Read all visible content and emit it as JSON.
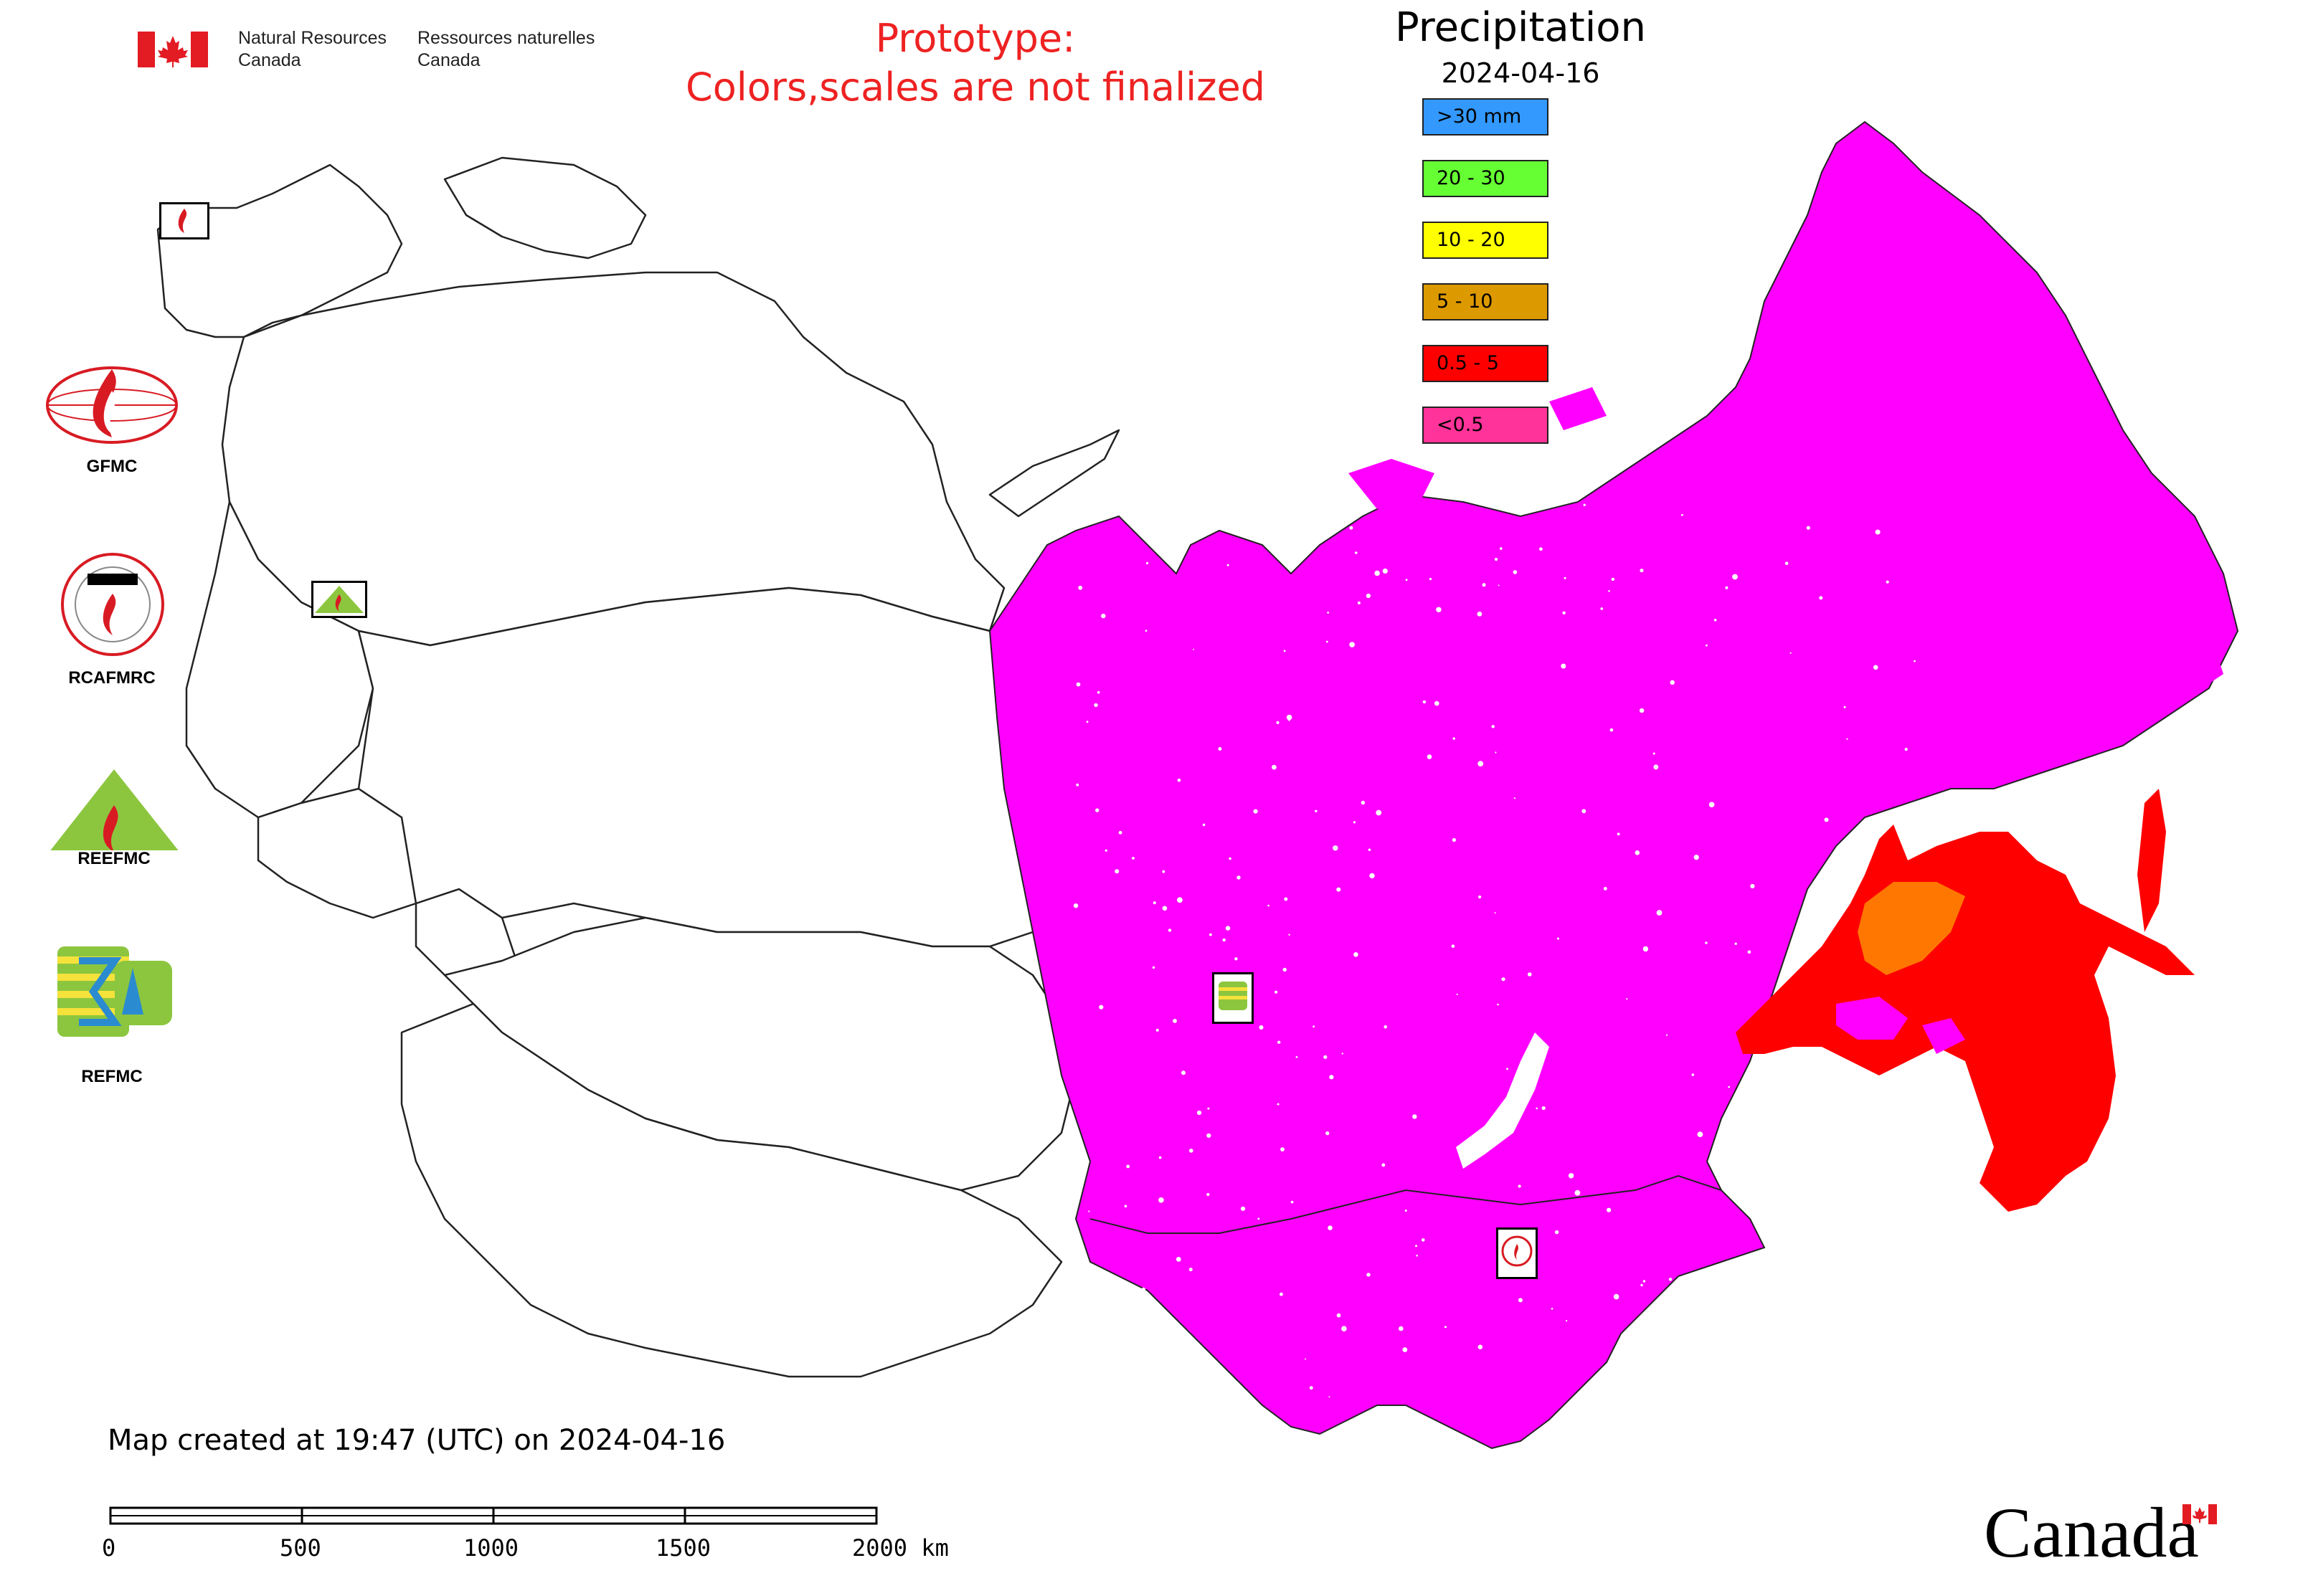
{
  "header": {
    "gov_en_line1": "Natural Resources",
    "gov_en_line2": "Canada",
    "gov_fr_line1": "Ressources naturelles",
    "gov_fr_line2": "Canada"
  },
  "notice": {
    "line1": "Prototype:",
    "line2": "Colors,scales are not finalized"
  },
  "legend": {
    "title": "Precipitation",
    "date": "2024-04-16",
    "classes": [
      {
        "label": ">30 mm",
        "color": "#3399ff"
      },
      {
        "label": "20 - 30",
        "color": "#66ff33"
      },
      {
        "label": "10 - 20",
        "color": "#ffff00"
      },
      {
        "label": "5 - 10",
        "color": "#dd9900"
      },
      {
        "label": "0.5 - 5",
        "color": "#ff0000"
      },
      {
        "label": "<0.5",
        "color": "#ff3399"
      }
    ]
  },
  "map_colors": {
    "main_fill": "#ff00ff",
    "east_fill": "#ff0000",
    "core_fill": "#ff7700",
    "outline": "#222222"
  },
  "logos": [
    {
      "name": "GFMC"
    },
    {
      "name": "RCAFMRC"
    },
    {
      "name": "REEFMC"
    },
    {
      "name": "REFMC"
    }
  ],
  "footer": {
    "created": "Map created at 19:47 (UTC) on 2024-04-16"
  },
  "scale_bar": {
    "ticks": [
      "0",
      "500",
      "1000",
      "1500",
      "2000 km"
    ]
  },
  "wordmark": "Canada"
}
